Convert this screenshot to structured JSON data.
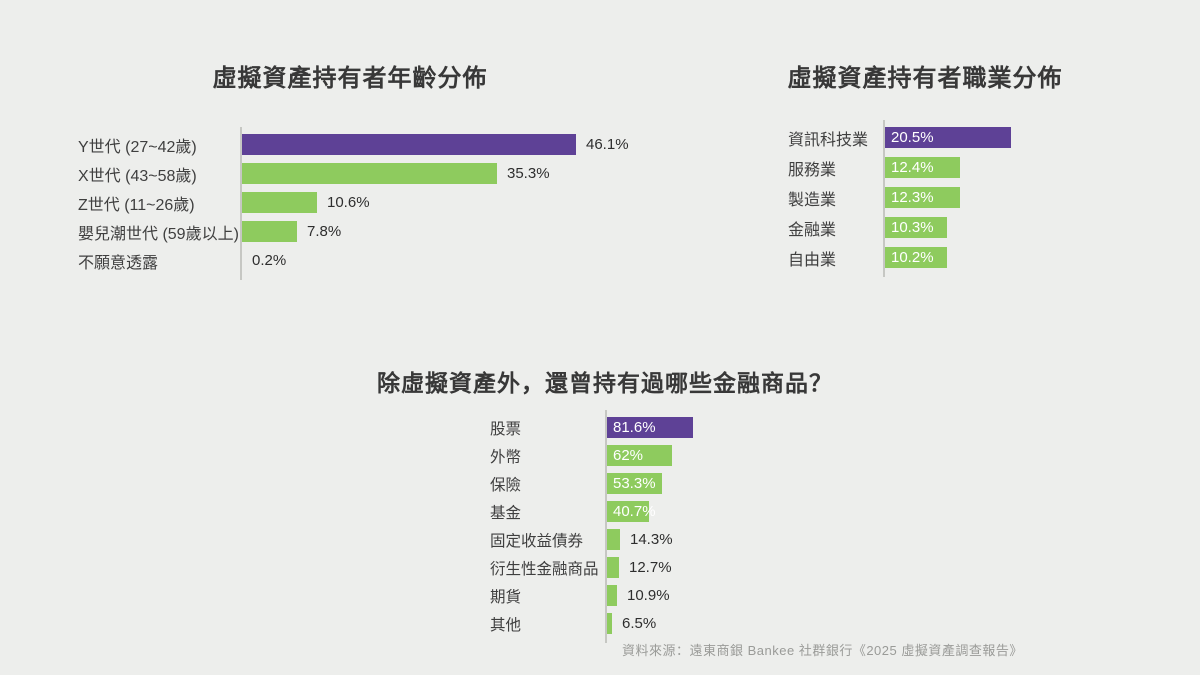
{
  "page": {
    "background": "#edeeec",
    "source_note": "資料來源：遠東商銀 Bankee 社群銀行《2025 虛擬資產調查報告》"
  },
  "colors": {
    "highlight_purple": "#5e4196",
    "bar_green": "#8ecb5e",
    "value_inside_text": "#ffffff",
    "value_outside_text": "#2e2e2e",
    "axis_line": "#c6c7c3",
    "title_text": "#383838",
    "label_text": "#3f3f3f"
  },
  "chart_data": [
    {
      "id": "age-distribution",
      "type": "bar",
      "orientation": "horizontal",
      "title": "虛擬資產持有者年齡分佈",
      "categories": [
        "Y世代 (27~42歲)",
        "X世代 (43~58歲)",
        "Z世代 (11~26歲)",
        "嬰兒潮世代 (59歲以上)",
        "不願意透露"
      ],
      "values": [
        46.1,
        35.3,
        10.6,
        7.8,
        0.2
      ],
      "value_labels": [
        "46.1%",
        "35.3%",
        "10.6%",
        "7.8%",
        "0.2%"
      ],
      "label_inside": [
        false,
        false,
        false,
        false,
        false
      ],
      "highlight_index": 0,
      "xlim": [
        0,
        50
      ],
      "grid": false,
      "legend": false
    },
    {
      "id": "occupation-distribution",
      "type": "bar",
      "orientation": "horizontal",
      "title": "虛擬資產持有者職業分佈",
      "categories": [
        "資訊科技業",
        "服務業",
        "製造業",
        "金融業",
        "自由業"
      ],
      "values": [
        20.5,
        12.4,
        12.3,
        10.3,
        10.2
      ],
      "value_labels": [
        "20.5%",
        "12.4%",
        "12.3%",
        "10.3%",
        "10.2%"
      ],
      "label_inside": [
        true,
        true,
        true,
        true,
        true
      ],
      "highlight_index": 0,
      "xlim": [
        0,
        22
      ],
      "grid": false,
      "legend": false
    },
    {
      "id": "other-financial-products",
      "type": "bar",
      "orientation": "horizontal",
      "title": "除虛擬資產外，還曾持有過哪些金融商品？",
      "categories": [
        "股票",
        "外幣",
        "保險",
        "基金",
        "固定收益債券",
        "衍生性金融商品",
        "期貨",
        "其他"
      ],
      "values": [
        81.6,
        62,
        53.3,
        40.7,
        14.3,
        12.7,
        10.9,
        6.5
      ],
      "value_labels": [
        "81.6%",
        "62%",
        "53.3%",
        "40.7%",
        "14.3%",
        "12.7%",
        "10.9%",
        "6.5%"
      ],
      "label_inside": [
        true,
        true,
        true,
        true,
        false,
        false,
        false,
        false
      ],
      "highlight_index": 0,
      "xlim": [
        0,
        90
      ],
      "grid": false,
      "legend": false
    }
  ]
}
